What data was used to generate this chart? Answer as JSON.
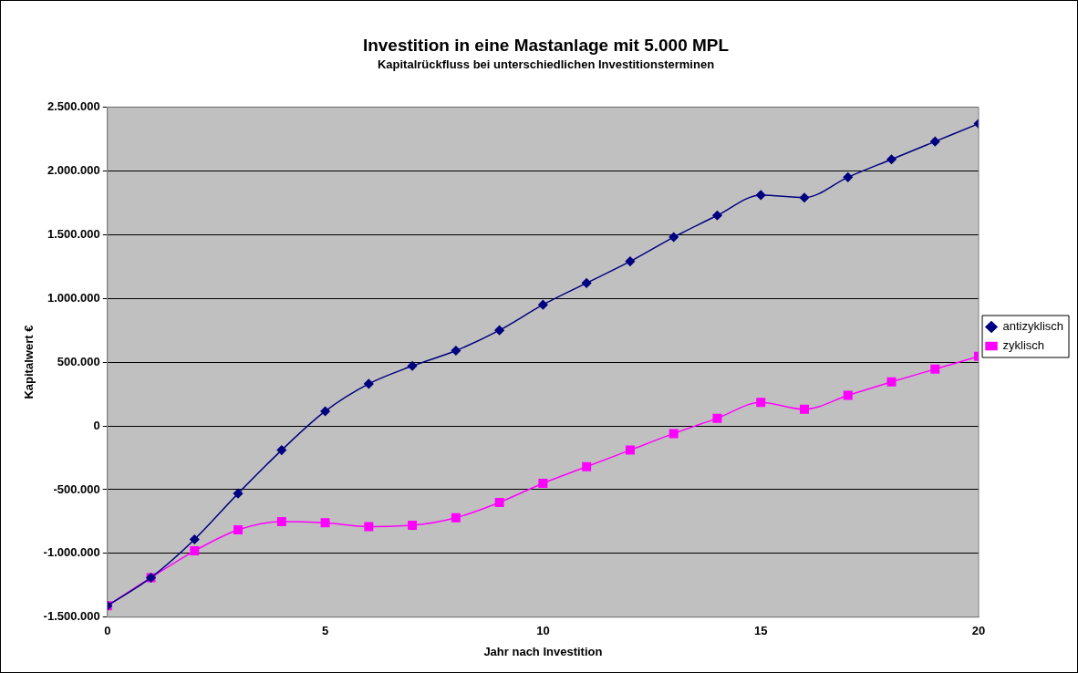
{
  "chart_data": {
    "type": "line",
    "title": "Investition in eine Mastanlage mit 5.000 MPL",
    "subtitle": "Kapitalrückfluss bei unterschiedlichen Investitionsterminen",
    "xlabel": "Jahr nach Investition",
    "ylabel": "Kapitalwert €",
    "x": [
      0,
      1,
      2,
      3,
      4,
      5,
      6,
      7,
      8,
      9,
      10,
      11,
      12,
      13,
      14,
      15,
      16,
      17,
      18,
      19,
      20
    ],
    "series": [
      {
        "name": "antizyklisch",
        "color": "#000080",
        "marker": "diamond",
        "values": [
          -1410000,
          -1190000,
          -890000,
          -530000,
          -190000,
          115000,
          330000,
          470000,
          590000,
          750000,
          950000,
          1120000,
          1290000,
          1480000,
          1650000,
          1810000,
          1790000,
          1950000,
          2090000,
          2230000,
          2370000
        ]
      },
      {
        "name": "zyklisch",
        "color": "#ff00ff",
        "marker": "square",
        "values": [
          -1410000,
          -1190000,
          -980000,
          -815000,
          -750000,
          -760000,
          -790000,
          -780000,
          -720000,
          -600000,
          -450000,
          -320000,
          -190000,
          -60000,
          60000,
          185000,
          130000,
          240000,
          345000,
          445000,
          545000
        ]
      }
    ],
    "xlim": [
      0,
      20
    ],
    "xticks": [
      0,
      5,
      10,
      15,
      20
    ],
    "ylim": [
      -1500000,
      2500000
    ],
    "yticks": [
      {
        "value": -1500000,
        "label": "-1.500.000"
      },
      {
        "value": -1000000,
        "label": "-1.000.000"
      },
      {
        "value": -500000,
        "label": "-500.000"
      },
      {
        "value": 0,
        "label": "0"
      },
      {
        "value": 500000,
        "label": "500.000"
      },
      {
        "value": 1000000,
        "label": "1.000.000"
      },
      {
        "value": 1500000,
        "label": "1.500.000"
      },
      {
        "value": 2000000,
        "label": "2.000.000"
      },
      {
        "value": 2500000,
        "label": "2.500.000"
      }
    ],
    "grid": "y",
    "legend": "right",
    "line_style": "solid"
  }
}
